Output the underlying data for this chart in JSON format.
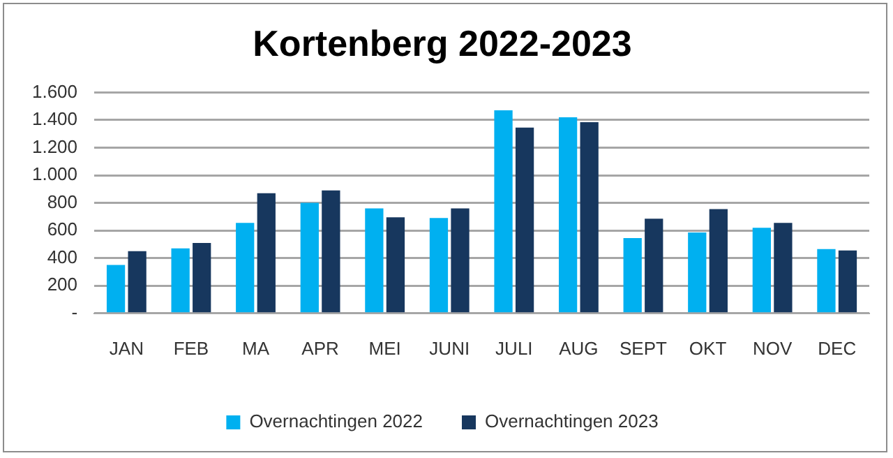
{
  "chart_data": {
    "type": "bar",
    "title": "Kortenberg 2022-2023",
    "categories": [
      "JAN",
      "FEB",
      "MA",
      "APR",
      "MEI",
      "JUNI",
      "JULI",
      "AUG",
      "SEPT",
      "OKT",
      "NOV",
      "DEC"
    ],
    "series": [
      {
        "name": "Overnachtingen 2022",
        "color": "#00b0f0",
        "values": [
          350,
          470,
          655,
          800,
          760,
          690,
          1470,
          1420,
          545,
          585,
          620,
          465
        ]
      },
      {
        "name": "Overnachtingen 2023",
        "color": "#17375e",
        "values": [
          450,
          510,
          870,
          890,
          695,
          760,
          1345,
          1385,
          685,
          755,
          655,
          455
        ]
      }
    ],
    "ylim": [
      0,
      1600
    ],
    "yticks": [
      {
        "value": 0,
        "label": "-"
      },
      {
        "value": 200,
        "label": "200"
      },
      {
        "value": 400,
        "label": "400"
      },
      {
        "value": 600,
        "label": "600"
      },
      {
        "value": 800,
        "label": "800"
      },
      {
        "value": 1000,
        "label": "1.000"
      },
      {
        "value": 1200,
        "label": "1.200"
      },
      {
        "value": 1400,
        "label": "1.400"
      },
      {
        "value": 1600,
        "label": "1.600"
      }
    ],
    "grid": "y",
    "legend": "bottom"
  }
}
